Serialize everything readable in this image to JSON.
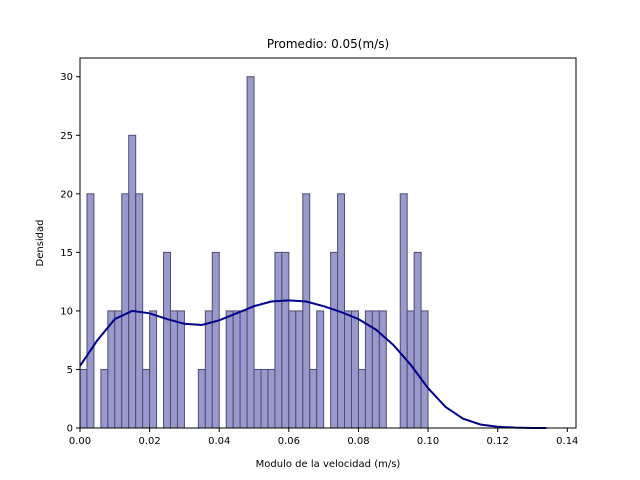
{
  "chart_data": {
    "type": "bar",
    "subtype": "histogram-with-kde",
    "title": "Promedio: 0.05(m/s)",
    "xlabel": "Modulo de la velocidad (m/s)",
    "ylabel": "Densidad",
    "xlim": [
      0.0,
      0.1425
    ],
    "ylim": [
      0,
      31.6
    ],
    "x_ticks": [
      "0.00",
      "0.02",
      "0.04",
      "0.06",
      "0.08",
      "0.10",
      "0.12",
      "0.14"
    ],
    "x_tick_values": [
      0.0,
      0.02,
      0.04,
      0.06,
      0.08,
      0.1,
      0.12,
      0.14
    ],
    "y_ticks": [
      "0",
      "5",
      "10",
      "15",
      "20",
      "25",
      "30"
    ],
    "y_tick_values": [
      0,
      5,
      10,
      15,
      20,
      25,
      30
    ],
    "grid": false,
    "bins": {
      "start": 0.0,
      "width": 0.002,
      "values": [
        5,
        20,
        0,
        5,
        10,
        10,
        20,
        25,
        20,
        5,
        10,
        0,
        15,
        10,
        10,
        0,
        0,
        5,
        10,
        15,
        0,
        10,
        10,
        10,
        30,
        5,
        5,
        5,
        15,
        15,
        10,
        10,
        20,
        5,
        10,
        0,
        15,
        20,
        10,
        10,
        5,
        10,
        10,
        10,
        0,
        0,
        20,
        10,
        15,
        10
      ]
    },
    "kde": {
      "x": [
        0.0,
        0.005,
        0.01,
        0.015,
        0.02,
        0.025,
        0.03,
        0.035,
        0.04,
        0.045,
        0.05,
        0.055,
        0.06,
        0.065,
        0.07,
        0.075,
        0.08,
        0.085,
        0.09,
        0.095,
        0.1,
        0.105,
        0.11,
        0.115,
        0.12,
        0.125,
        0.13,
        0.134
      ],
      "y": [
        5.3,
        7.5,
        9.3,
        10.0,
        9.8,
        9.3,
        8.9,
        8.8,
        9.2,
        9.8,
        10.4,
        10.8,
        10.9,
        10.8,
        10.4,
        9.9,
        9.3,
        8.4,
        7.1,
        5.4,
        3.4,
        1.8,
        0.8,
        0.3,
        0.1,
        0.03,
        0.0,
        0.0
      ]
    },
    "colors": {
      "bar_fill": "#9999cc",
      "bar_edge": "#4d4d73",
      "kde_line": "#00008b"
    }
  }
}
